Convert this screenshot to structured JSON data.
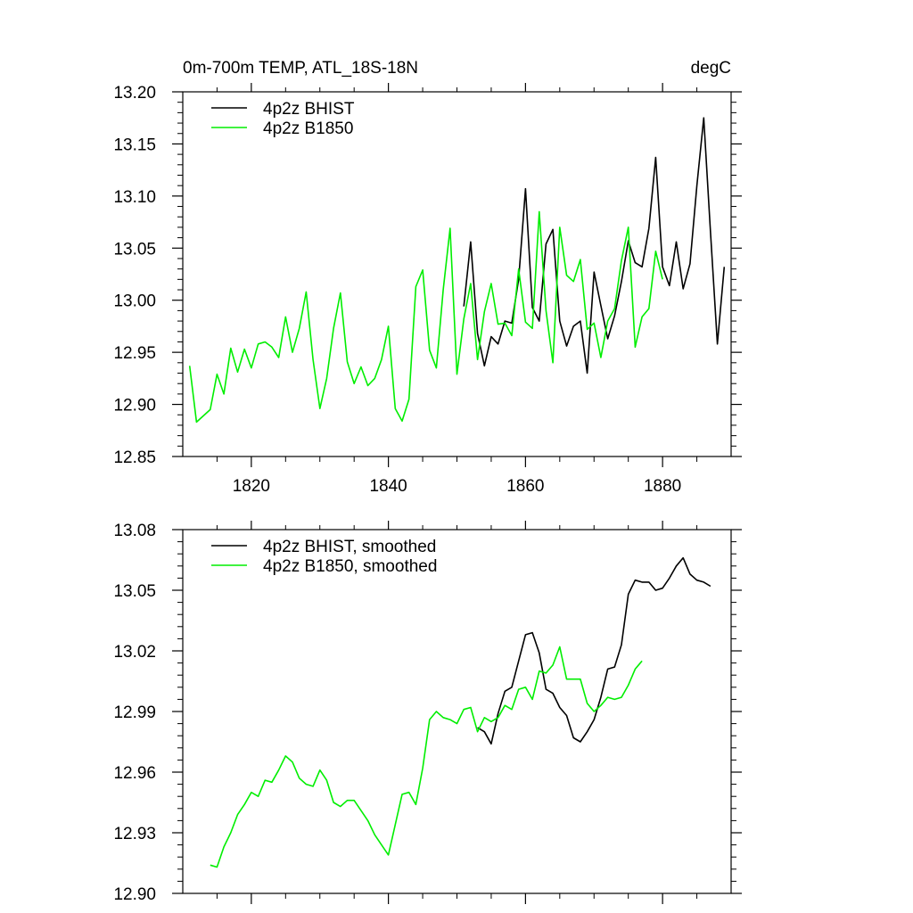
{
  "chart_data": [
    {
      "type": "line",
      "title": "0m-700m TEMP, ATL_18S-18N",
      "units": "degC",
      "xlim": [
        1810,
        1890
      ],
      "ylim": [
        12.85,
        13.2
      ],
      "xticks": [
        1820,
        1840,
        1860,
        1880
      ],
      "yticks": [
        12.85,
        12.9,
        12.95,
        13.0,
        13.05,
        13.1,
        13.15,
        13.2
      ],
      "ytick_decimals": 2,
      "show_xtick_labels": true,
      "legend_position": "top-left",
      "series": [
        {
          "name": "4p2z BHIST",
          "color": "#000000",
          "x": [
            1851,
            1852,
            1853,
            1854,
            1855,
            1856,
            1857,
            1858,
            1859,
            1860,
            1861,
            1862,
            1863,
            1864,
            1865,
            1866,
            1867,
            1868,
            1869,
            1870,
            1871,
            1872,
            1873,
            1874,
            1875,
            1876,
            1877,
            1878,
            1879,
            1880,
            1881,
            1882,
            1883,
            1884,
            1885,
            1886,
            1887,
            1888,
            1889
          ],
          "y": [
            12.994,
            13.056,
            12.968,
            12.937,
            12.965,
            12.958,
            12.98,
            12.978,
            13.02,
            13.107,
            12.993,
            12.98,
            13.054,
            13.068,
            12.98,
            12.956,
            12.975,
            12.98,
            12.93,
            13.027,
            12.995,
            12.963,
            12.985,
            13.018,
            13.057,
            13.036,
            13.032,
            13.069,
            13.137,
            13.032,
            13.014,
            13.056,
            13.011,
            13.035,
            13.11,
            13.175,
            13.065,
            12.958,
            13.032
          ]
        },
        {
          "name": "4p2z B1850",
          "color": "#00ee00",
          "x": [
            1811,
            1812,
            1813,
            1814,
            1815,
            1816,
            1817,
            1818,
            1819,
            1820,
            1821,
            1822,
            1823,
            1824,
            1825,
            1826,
            1827,
            1828,
            1829,
            1830,
            1831,
            1832,
            1833,
            1834,
            1835,
            1836,
            1837,
            1838,
            1839,
            1840,
            1841,
            1842,
            1843,
            1844,
            1845,
            1846,
            1847,
            1848,
            1849,
            1850,
            1851,
            1852,
            1853,
            1854,
            1855,
            1856,
            1857,
            1858,
            1859,
            1860,
            1861,
            1862,
            1863,
            1864,
            1865,
            1866,
            1867,
            1868,
            1869,
            1870,
            1871,
            1872,
            1873,
            1874,
            1875,
            1876,
            1877,
            1878,
            1879,
            1880
          ],
          "y": [
            12.937,
            12.883,
            12.889,
            12.895,
            12.929,
            12.91,
            12.954,
            12.931,
            12.953,
            12.935,
            12.958,
            12.96,
            12.955,
            12.945,
            12.984,
            12.95,
            12.973,
            13.008,
            12.943,
            12.896,
            12.925,
            12.973,
            13.007,
            12.941,
            12.92,
            12.936,
            12.918,
            12.925,
            12.943,
            12.975,
            12.896,
            12.884,
            12.905,
            13.013,
            13.029,
            12.952,
            12.935,
            13.01,
            13.069,
            12.929,
            12.982,
            13.016,
            12.943,
            12.989,
            13.016,
            12.977,
            12.978,
            12.966,
            13.03,
            12.979,
            12.973,
            13.085,
            12.99,
            12.94,
            13.07,
            13.024,
            13.018,
            13.039,
            12.972,
            12.978,
            12.945,
            12.98,
            12.992,
            13.038,
            13.07,
            12.955,
            12.984,
            12.992,
            13.047,
            13.02
          ]
        }
      ]
    },
    {
      "type": "line",
      "xlim": [
        1810,
        1890
      ],
      "ylim": [
        12.9,
        13.08
      ],
      "xticks": [
        1820,
        1840,
        1860,
        1880
      ],
      "yticks": [
        12.9,
        12.93,
        12.96,
        12.99,
        13.02,
        13.05,
        13.08
      ],
      "ytick_decimals": 2,
      "show_xtick_labels": false,
      "legend_position": "top-left",
      "series": [
        {
          "name": "4p2z BHIST, smoothed",
          "color": "#000000",
          "x": [
            1853,
            1854,
            1855,
            1856,
            1857,
            1858,
            1859,
            1860,
            1861,
            1862,
            1863,
            1864,
            1865,
            1866,
            1867,
            1868,
            1869,
            1870,
            1871,
            1872,
            1873,
            1874,
            1875,
            1876,
            1877,
            1878,
            1879,
            1880,
            1881,
            1882,
            1883,
            1884,
            1885,
            1886,
            1887
          ],
          "y": [
            12.982,
            12.98,
            12.974,
            12.989,
            13.0,
            13.002,
            13.015,
            13.028,
            13.029,
            13.019,
            13.001,
            12.999,
            12.992,
            12.988,
            12.977,
            12.975,
            12.98,
            12.986,
            12.997,
            13.011,
            13.012,
            13.023,
            13.048,
            13.055,
            13.054,
            13.054,
            13.05,
            13.051,
            13.056,
            13.062,
            13.066,
            13.058,
            13.055,
            13.054,
            13.052
          ]
        },
        {
          "name": "4p2z B1850, smoothed",
          "color": "#00ee00",
          "x": [
            1814,
            1815,
            1816,
            1817,
            1818,
            1819,
            1820,
            1821,
            1822,
            1823,
            1824,
            1825,
            1826,
            1827,
            1828,
            1829,
            1830,
            1831,
            1832,
            1833,
            1834,
            1835,
            1836,
            1837,
            1838,
            1839,
            1840,
            1841,
            1842,
            1843,
            1844,
            1845,
            1846,
            1847,
            1848,
            1849,
            1850,
            1851,
            1852,
            1853,
            1854,
            1855,
            1856,
            1857,
            1858,
            1859,
            1860,
            1861,
            1862,
            1863,
            1864,
            1865,
            1866,
            1867,
            1868,
            1869,
            1870,
            1871,
            1872,
            1873,
            1874,
            1875,
            1876,
            1877
          ],
          "y": [
            12.914,
            12.913,
            12.923,
            12.93,
            12.939,
            12.944,
            12.95,
            12.948,
            12.956,
            12.955,
            12.961,
            12.968,
            12.965,
            12.957,
            12.954,
            12.953,
            12.961,
            12.956,
            12.945,
            12.943,
            12.946,
            12.946,
            12.941,
            12.936,
            12.929,
            12.924,
            12.919,
            12.934,
            12.949,
            12.95,
            12.944,
            12.962,
            12.986,
            12.99,
            12.987,
            12.986,
            12.984,
            12.991,
            12.992,
            12.98,
            12.987,
            12.985,
            12.987,
            12.993,
            12.991,
            13.001,
            13.002,
            12.996,
            13.01,
            13.009,
            13.013,
            13.022,
            13.006,
            13.006,
            13.006,
            12.994,
            12.99,
            12.993,
            12.997,
            12.996,
            12.997,
            13.003,
            13.011,
            13.015
          ]
        }
      ]
    }
  ]
}
